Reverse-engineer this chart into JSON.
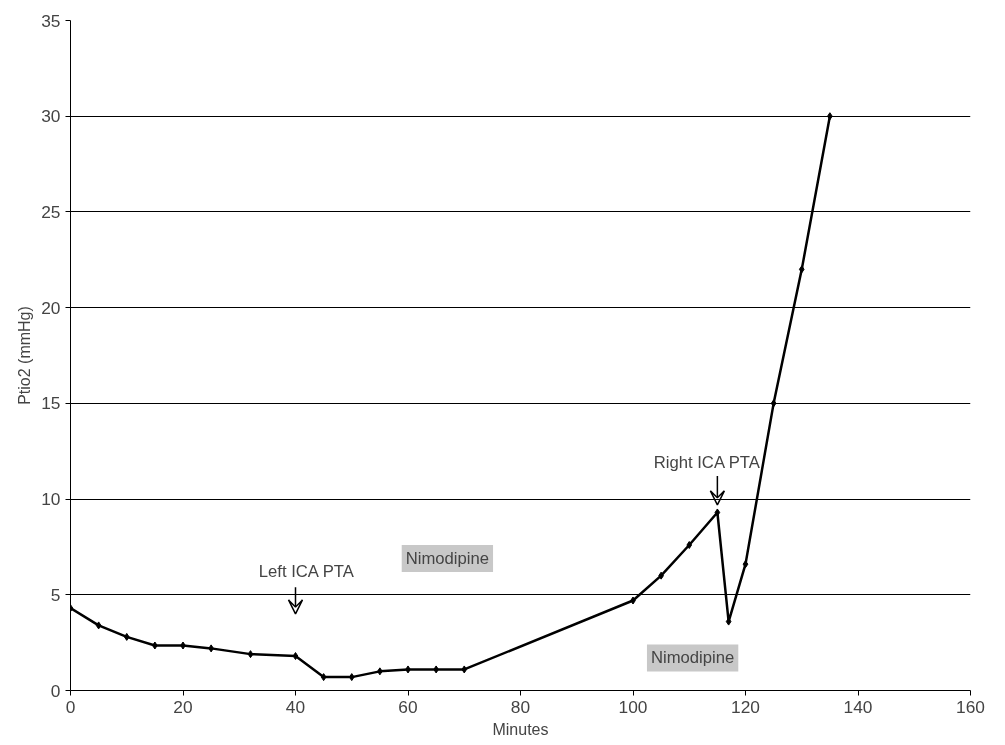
{
  "chart_data": {
    "type": "line",
    "xlabel": "Minutes",
    "ylabel": "Ptio2 (mmHg)",
    "x": [
      0,
      5,
      10,
      15,
      20,
      25,
      32,
      40,
      45,
      50,
      55,
      60,
      65,
      70,
      100,
      105,
      110,
      115,
      117,
      120,
      125,
      130,
      135
    ],
    "series": [
      {
        "color": "#000000",
        "values": [
          4.3,
          3.4,
          2.8,
          2.35,
          2.35,
          2.2,
          1.9,
          1.8,
          0.7,
          0.7,
          1.0,
          1.1,
          1.1,
          1.1,
          4.7,
          6.0,
          7.6,
          9.3,
          3.6,
          6.6,
          15,
          22,
          30
        ]
      }
    ],
    "xlim": [
      0,
      160
    ],
    "xticks": [
      0,
      20,
      40,
      60,
      80,
      100,
      120,
      140,
      160
    ],
    "ylim": [
      0,
      35
    ],
    "yticks": [
      0,
      5,
      10,
      15,
      20,
      25,
      30,
      35
    ],
    "grid": "y",
    "marker": "diamond",
    "line_style": "solid",
    "annotations": [
      "Left ICA PTA",
      {
        "text": "Right ICA PTA",
        "x": 115,
        "y": 9.3
      },
      "Nimodipine",
      "Nimodipine"
    ]
  }
}
